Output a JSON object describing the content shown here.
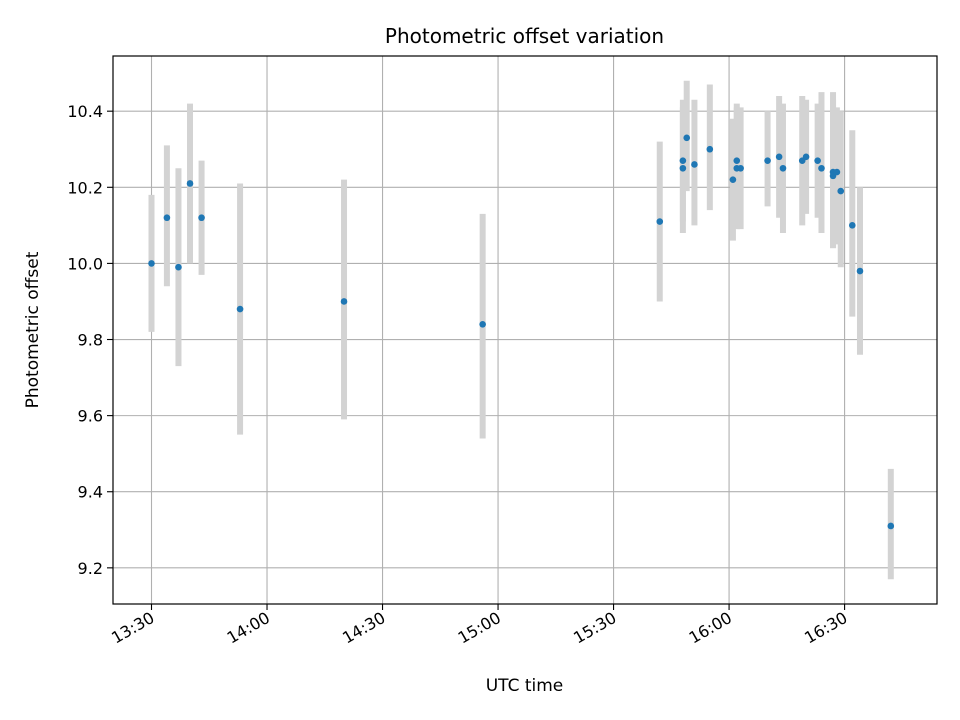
{
  "chart_data": {
    "type": "scatter",
    "title": "Photometric offset variation",
    "xlabel": "UTC time",
    "ylabel": "Photometric offset",
    "xlim": [
      "13:20",
      "16:54"
    ],
    "ylim": [
      9.105,
      10.545
    ],
    "x_ticks": [
      "13:30",
      "14:00",
      "14:30",
      "15:00",
      "15:30",
      "16:00",
      "16:30"
    ],
    "y_ticks": [
      "9.2",
      "9.4",
      "9.6",
      "9.8",
      "10.0",
      "10.2",
      "10.4"
    ],
    "grid": true,
    "colors": {
      "point": "#1f77b4",
      "errorbar": "#d3d3d3",
      "grid": "#b0b0b0"
    },
    "points": [
      {
        "x": "13:30",
        "y": 10.0,
        "lo": 9.82,
        "hi": 10.18
      },
      {
        "x": "13:34",
        "y": 10.12,
        "lo": 9.94,
        "hi": 10.31
      },
      {
        "x": "13:37",
        "y": 9.99,
        "lo": 9.73,
        "hi": 10.25
      },
      {
        "x": "13:40",
        "y": 10.21,
        "lo": 10.0,
        "hi": 10.42
      },
      {
        "x": "13:43",
        "y": 10.12,
        "lo": 9.97,
        "hi": 10.27
      },
      {
        "x": "13:53",
        "y": 9.88,
        "lo": 9.55,
        "hi": 10.21
      },
      {
        "x": "14:20",
        "y": 9.9,
        "lo": 9.59,
        "hi": 10.22
      },
      {
        "x": "14:56",
        "y": 9.84,
        "lo": 9.54,
        "hi": 10.13
      },
      {
        "x": "15:42",
        "y": 10.11,
        "lo": 9.9,
        "hi": 10.32
      },
      {
        "x": "15:48",
        "y": 10.27,
        "lo": 10.11,
        "hi": 10.43
      },
      {
        "x": "15:48",
        "y": 10.25,
        "lo": 10.08,
        "hi": 10.41
      },
      {
        "x": "15:49",
        "y": 10.33,
        "lo": 10.19,
        "hi": 10.48
      },
      {
        "x": "15:51",
        "y": 10.26,
        "lo": 10.1,
        "hi": 10.43
      },
      {
        "x": "15:55",
        "y": 10.3,
        "lo": 10.14,
        "hi": 10.47
      },
      {
        "x": "16:01",
        "y": 10.22,
        "lo": 10.06,
        "hi": 10.38
      },
      {
        "x": "16:02",
        "y": 10.25,
        "lo": 10.09,
        "hi": 10.41
      },
      {
        "x": "16:02",
        "y": 10.27,
        "lo": 10.12,
        "hi": 10.42
      },
      {
        "x": "16:03",
        "y": 10.25,
        "lo": 10.09,
        "hi": 10.41
      },
      {
        "x": "16:10",
        "y": 10.27,
        "lo": 10.15,
        "hi": 10.4
      },
      {
        "x": "16:13",
        "y": 10.28,
        "lo": 10.12,
        "hi": 10.44
      },
      {
        "x": "16:14",
        "y": 10.25,
        "lo": 10.08,
        "hi": 10.42
      },
      {
        "x": "16:19",
        "y": 10.27,
        "lo": 10.1,
        "hi": 10.44
      },
      {
        "x": "16:20",
        "y": 10.28,
        "lo": 10.13,
        "hi": 10.43
      },
      {
        "x": "16:23",
        "y": 10.27,
        "lo": 10.12,
        "hi": 10.42
      },
      {
        "x": "16:24",
        "y": 10.25,
        "lo": 10.08,
        "hi": 10.45
      },
      {
        "x": "16:27",
        "y": 10.24,
        "lo": 10.04,
        "hi": 10.45
      },
      {
        "x": "16:27",
        "y": 10.23,
        "lo": 10.04,
        "hi": 10.43
      },
      {
        "x": "16:28",
        "y": 10.24,
        "lo": 10.05,
        "hi": 10.41
      },
      {
        "x": "16:29",
        "y": 10.19,
        "lo": 9.99,
        "hi": 10.4
      },
      {
        "x": "16:32",
        "y": 10.1,
        "lo": 9.86,
        "hi": 10.35
      },
      {
        "x": "16:34",
        "y": 9.98,
        "lo": 9.76,
        "hi": 10.2
      },
      {
        "x": "16:42",
        "y": 9.31,
        "lo": 9.17,
        "hi": 9.46
      }
    ]
  }
}
